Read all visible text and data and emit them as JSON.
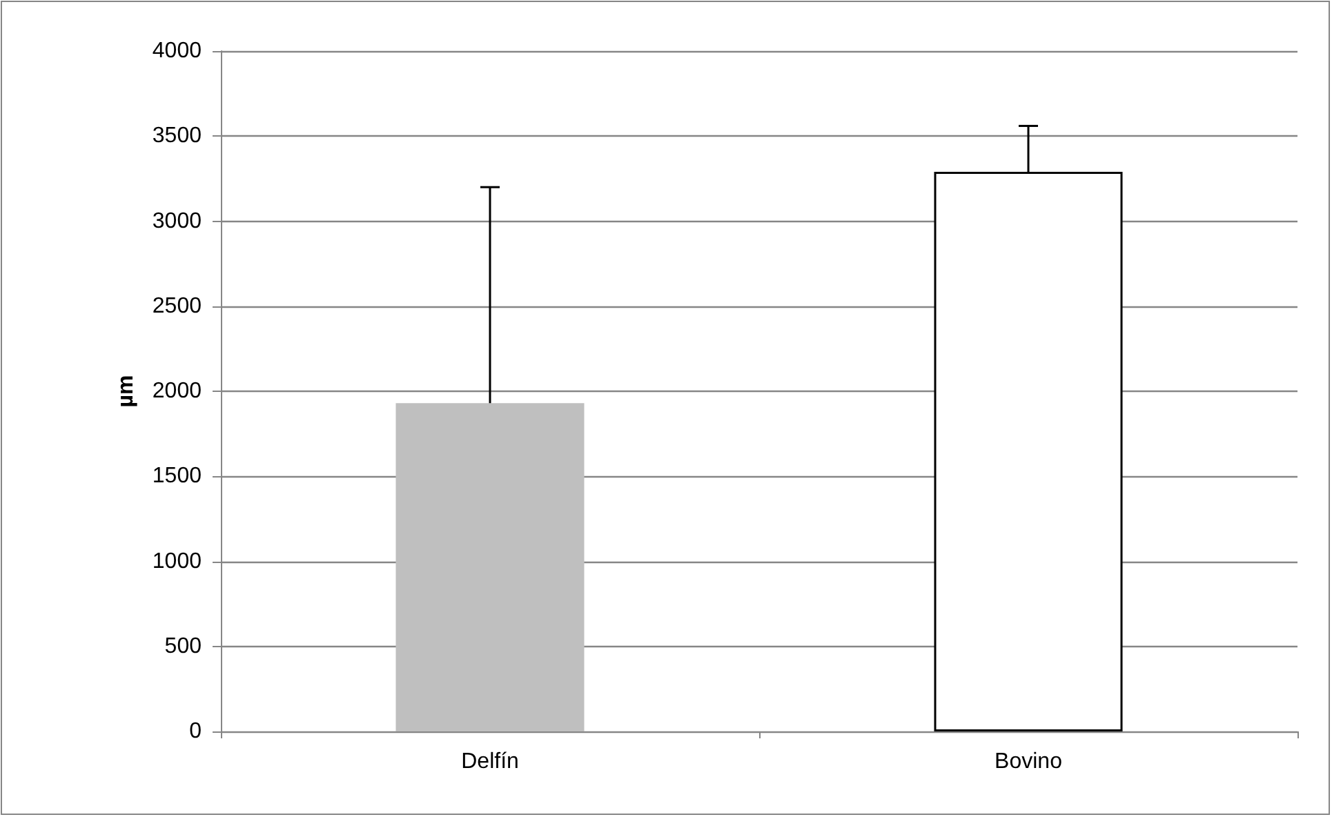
{
  "chart_data": {
    "type": "bar",
    "categories": [
      "Delfín",
      "Bovino"
    ],
    "values": [
      1930,
      3290
    ],
    "colors": [
      "#bfbfbf",
      "#ffffff"
    ],
    "errors": [
      [
        1930,
        3200
      ],
      [
        3290,
        3560
      ]
    ],
    "ylabel": "µm",
    "ylim": [
      0,
      4000
    ],
    "yticks": [
      0,
      500,
      1000,
      1500,
      2000,
      2500,
      3000,
      3500,
      4000
    ],
    "grid": "y"
  }
}
